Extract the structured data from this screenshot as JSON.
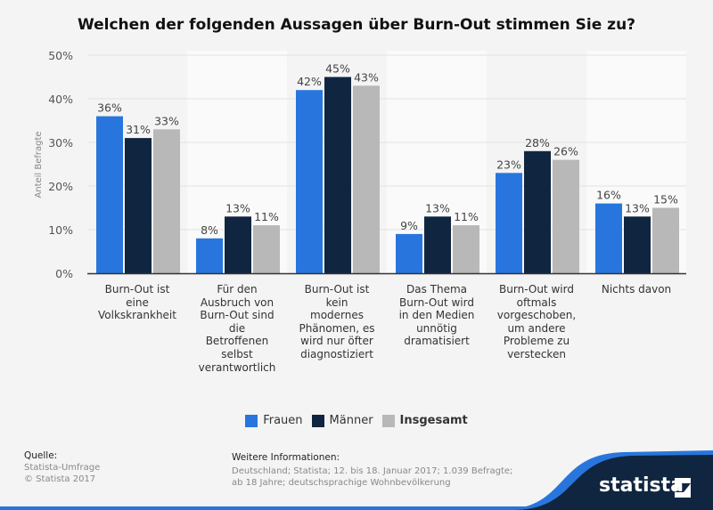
{
  "chart_data": {
    "type": "bar",
    "title": "Welchen der folgenden Aussagen über Burn-Out stimmen Sie zu?",
    "ylabel": "Anteil Befragte",
    "ylim": [
      0,
      50
    ],
    "yticks": [
      "0%",
      "10%",
      "20%",
      "30%",
      "40%",
      "50%"
    ],
    "grid": true,
    "legend_position": "bottom",
    "categories": [
      "Burn-Out ist\neine\nVolkskrankheit",
      "Für den\nAusbruch von\nBurn-Out sind\ndie\nBetroffenen\nselbst\nverantwortlich",
      "Burn-Out ist\nkein\nmodernes\nPhänomen, es\nwird nur öfter\ndiagnostiziert",
      "Das Thema\nBurn-Out wird\nin den Medien\nunnötig\ndramatisiert",
      "Burn-Out wird\noftmals\nvorgeschoben,\num andere\nProbleme zu\nverstecken",
      "Nichts davon"
    ],
    "series": [
      {
        "name": "Frauen",
        "color": "#2876dd",
        "values": [
          36,
          8,
          42,
          9,
          23,
          16
        ]
      },
      {
        "name": "Männer",
        "color": "#10253f",
        "values": [
          31,
          13,
          45,
          13,
          28,
          13
        ]
      },
      {
        "name": "Insgesamt",
        "color": "#b8b8b8",
        "values": [
          33,
          11,
          43,
          11,
          26,
          15
        ]
      }
    ]
  },
  "footer": {
    "source_label": "Quelle:",
    "source": "Statista-Umfrage",
    "copyright": "© Statista 2017",
    "info_label": "Weitere Informationen:",
    "info": "Deutschland; Statista; 12. bis 18. Januar 2017; 1.039 Befragte; ab 18 Jahre; deutschsprachige Wohnbevölkerung",
    "logo": "statista"
  }
}
